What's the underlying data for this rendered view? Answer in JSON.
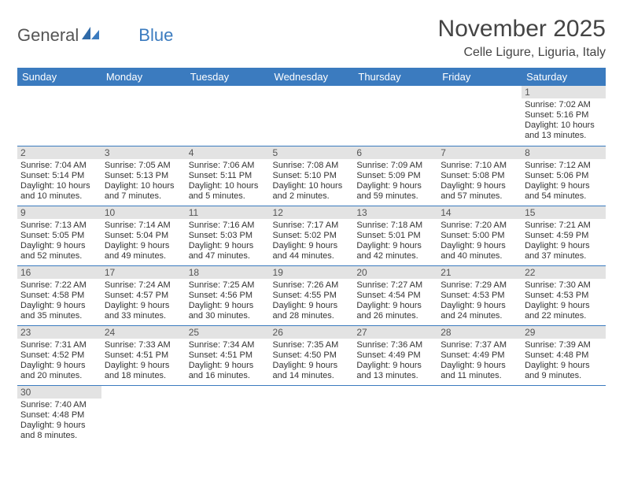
{
  "logo": {
    "word1": "General",
    "word2": "Blue"
  },
  "title": "November 2025",
  "location": "Celle Ligure, Liguria, Italy",
  "weekdays": [
    "Sunday",
    "Monday",
    "Tuesday",
    "Wednesday",
    "Thursday",
    "Friday",
    "Saturday"
  ],
  "colors": {
    "header_bg": "#3b7bbf",
    "daynum_bg": "#e3e3e3",
    "row_border": "#3b7bbf"
  },
  "labels": {
    "sunrise": "Sunrise:",
    "sunset": "Sunset:",
    "daylight": "Daylight:"
  },
  "rows": [
    [
      null,
      null,
      null,
      null,
      null,
      null,
      {
        "n": "1",
        "sr": "7:02 AM",
        "ss": "5:16 PM",
        "dl": "10 hours and 13 minutes."
      }
    ],
    [
      {
        "n": "2",
        "sr": "7:04 AM",
        "ss": "5:14 PM",
        "dl": "10 hours and 10 minutes."
      },
      {
        "n": "3",
        "sr": "7:05 AM",
        "ss": "5:13 PM",
        "dl": "10 hours and 7 minutes."
      },
      {
        "n": "4",
        "sr": "7:06 AM",
        "ss": "5:11 PM",
        "dl": "10 hours and 5 minutes."
      },
      {
        "n": "5",
        "sr": "7:08 AM",
        "ss": "5:10 PM",
        "dl": "10 hours and 2 minutes."
      },
      {
        "n": "6",
        "sr": "7:09 AM",
        "ss": "5:09 PM",
        "dl": "9 hours and 59 minutes."
      },
      {
        "n": "7",
        "sr": "7:10 AM",
        "ss": "5:08 PM",
        "dl": "9 hours and 57 minutes."
      },
      {
        "n": "8",
        "sr": "7:12 AM",
        "ss": "5:06 PM",
        "dl": "9 hours and 54 minutes."
      }
    ],
    [
      {
        "n": "9",
        "sr": "7:13 AM",
        "ss": "5:05 PM",
        "dl": "9 hours and 52 minutes."
      },
      {
        "n": "10",
        "sr": "7:14 AM",
        "ss": "5:04 PM",
        "dl": "9 hours and 49 minutes."
      },
      {
        "n": "11",
        "sr": "7:16 AM",
        "ss": "5:03 PM",
        "dl": "9 hours and 47 minutes."
      },
      {
        "n": "12",
        "sr": "7:17 AM",
        "ss": "5:02 PM",
        "dl": "9 hours and 44 minutes."
      },
      {
        "n": "13",
        "sr": "7:18 AM",
        "ss": "5:01 PM",
        "dl": "9 hours and 42 minutes."
      },
      {
        "n": "14",
        "sr": "7:20 AM",
        "ss": "5:00 PM",
        "dl": "9 hours and 40 minutes."
      },
      {
        "n": "15",
        "sr": "7:21 AM",
        "ss": "4:59 PM",
        "dl": "9 hours and 37 minutes."
      }
    ],
    [
      {
        "n": "16",
        "sr": "7:22 AM",
        "ss": "4:58 PM",
        "dl": "9 hours and 35 minutes."
      },
      {
        "n": "17",
        "sr": "7:24 AM",
        "ss": "4:57 PM",
        "dl": "9 hours and 33 minutes."
      },
      {
        "n": "18",
        "sr": "7:25 AM",
        "ss": "4:56 PM",
        "dl": "9 hours and 30 minutes."
      },
      {
        "n": "19",
        "sr": "7:26 AM",
        "ss": "4:55 PM",
        "dl": "9 hours and 28 minutes."
      },
      {
        "n": "20",
        "sr": "7:27 AM",
        "ss": "4:54 PM",
        "dl": "9 hours and 26 minutes."
      },
      {
        "n": "21",
        "sr": "7:29 AM",
        "ss": "4:53 PM",
        "dl": "9 hours and 24 minutes."
      },
      {
        "n": "22",
        "sr": "7:30 AM",
        "ss": "4:53 PM",
        "dl": "9 hours and 22 minutes."
      }
    ],
    [
      {
        "n": "23",
        "sr": "7:31 AM",
        "ss": "4:52 PM",
        "dl": "9 hours and 20 minutes."
      },
      {
        "n": "24",
        "sr": "7:33 AM",
        "ss": "4:51 PM",
        "dl": "9 hours and 18 minutes."
      },
      {
        "n": "25",
        "sr": "7:34 AM",
        "ss": "4:51 PM",
        "dl": "9 hours and 16 minutes."
      },
      {
        "n": "26",
        "sr": "7:35 AM",
        "ss": "4:50 PM",
        "dl": "9 hours and 14 minutes."
      },
      {
        "n": "27",
        "sr": "7:36 AM",
        "ss": "4:49 PM",
        "dl": "9 hours and 13 minutes."
      },
      {
        "n": "28",
        "sr": "7:37 AM",
        "ss": "4:49 PM",
        "dl": "9 hours and 11 minutes."
      },
      {
        "n": "29",
        "sr": "7:39 AM",
        "ss": "4:48 PM",
        "dl": "9 hours and 9 minutes."
      }
    ],
    [
      {
        "n": "30",
        "sr": "7:40 AM",
        "ss": "4:48 PM",
        "dl": "9 hours and 8 minutes."
      },
      null,
      null,
      null,
      null,
      null,
      null
    ]
  ]
}
